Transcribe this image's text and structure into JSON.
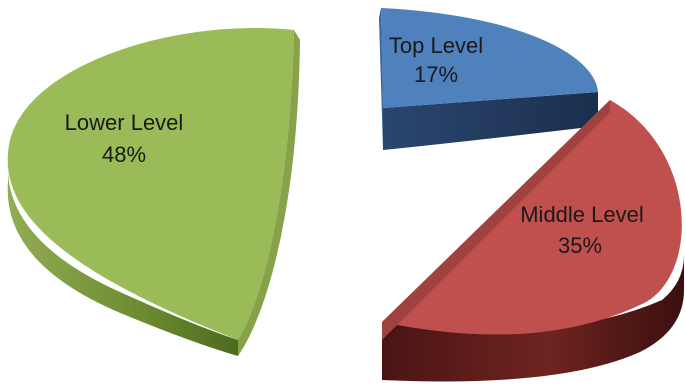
{
  "chart_data": {
    "type": "pie",
    "style": "3d-exploded",
    "slices": [
      {
        "label": "Top Level",
        "percent_label": "17%",
        "value": 17,
        "color": "#4f81bd"
      },
      {
        "label": "Middle Level",
        "percent_label": "35%",
        "value": 35,
        "color": "#c0504d"
      },
      {
        "label": "Lower Level",
        "percent_label": "48%",
        "value": 48,
        "color": "#9bbb59"
      }
    ]
  }
}
